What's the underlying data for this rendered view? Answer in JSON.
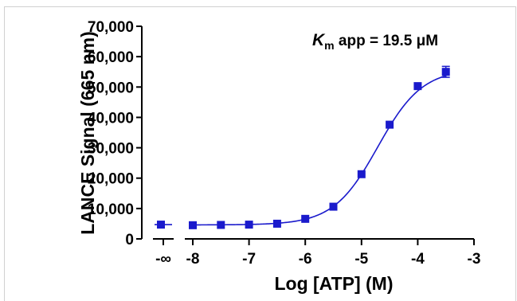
{
  "chart_data": {
    "type": "scatter",
    "title": "",
    "ylabel": "LANCE Signal (665 nm)",
    "xlabel": "Log [ATP]  (M)",
    "annotation": {
      "symbol": "K",
      "subscript": "m",
      "text": " app = 19.5 μM"
    },
    "ylim": [
      0,
      70000
    ],
    "xlim": [
      -8,
      -3
    ],
    "y_ticks": [
      {
        "value": 0,
        "label": "0"
      },
      {
        "value": 10000,
        "label": "10,000"
      },
      {
        "value": 20000,
        "label": "20,000"
      },
      {
        "value": 30000,
        "label": "30,000"
      },
      {
        "value": 40000,
        "label": "40,000"
      },
      {
        "value": 50000,
        "label": "50,000"
      },
      {
        "value": 60000,
        "label": "60,000"
      },
      {
        "value": 70000,
        "label": "70,000"
      }
    ],
    "x_ticks": [
      {
        "value": -8,
        "label": "-8"
      },
      {
        "value": -7,
        "label": "-7"
      },
      {
        "value": -6,
        "label": "-6"
      },
      {
        "value": -5,
        "label": "-5"
      },
      {
        "value": -4,
        "label": "-4"
      },
      {
        "value": -3,
        "label": "-3"
      }
    ],
    "x_break_tick": {
      "label": "-∞",
      "value": 4700
    },
    "series": [
      {
        "color": "#1a1acc",
        "points": [
          {
            "x": -8.0,
            "y": 4500
          },
          {
            "x": -7.5,
            "y": 4600
          },
          {
            "x": -7.0,
            "y": 4700
          },
          {
            "x": -6.5,
            "y": 5000
          },
          {
            "x": -6.0,
            "y": 6600
          },
          {
            "x": -5.5,
            "y": 10600
          },
          {
            "x": -5.0,
            "y": 21300
          },
          {
            "x": -4.5,
            "y": 37600
          },
          {
            "x": -4.0,
            "y": 50300
          },
          {
            "x": -3.5,
            "y": 55000,
            "error": 1800
          }
        ]
      }
    ],
    "fit": {
      "bottom": 4600,
      "top": 56000,
      "logEC50": -4.71,
      "hill": 1.1
    },
    "grid": false
  }
}
